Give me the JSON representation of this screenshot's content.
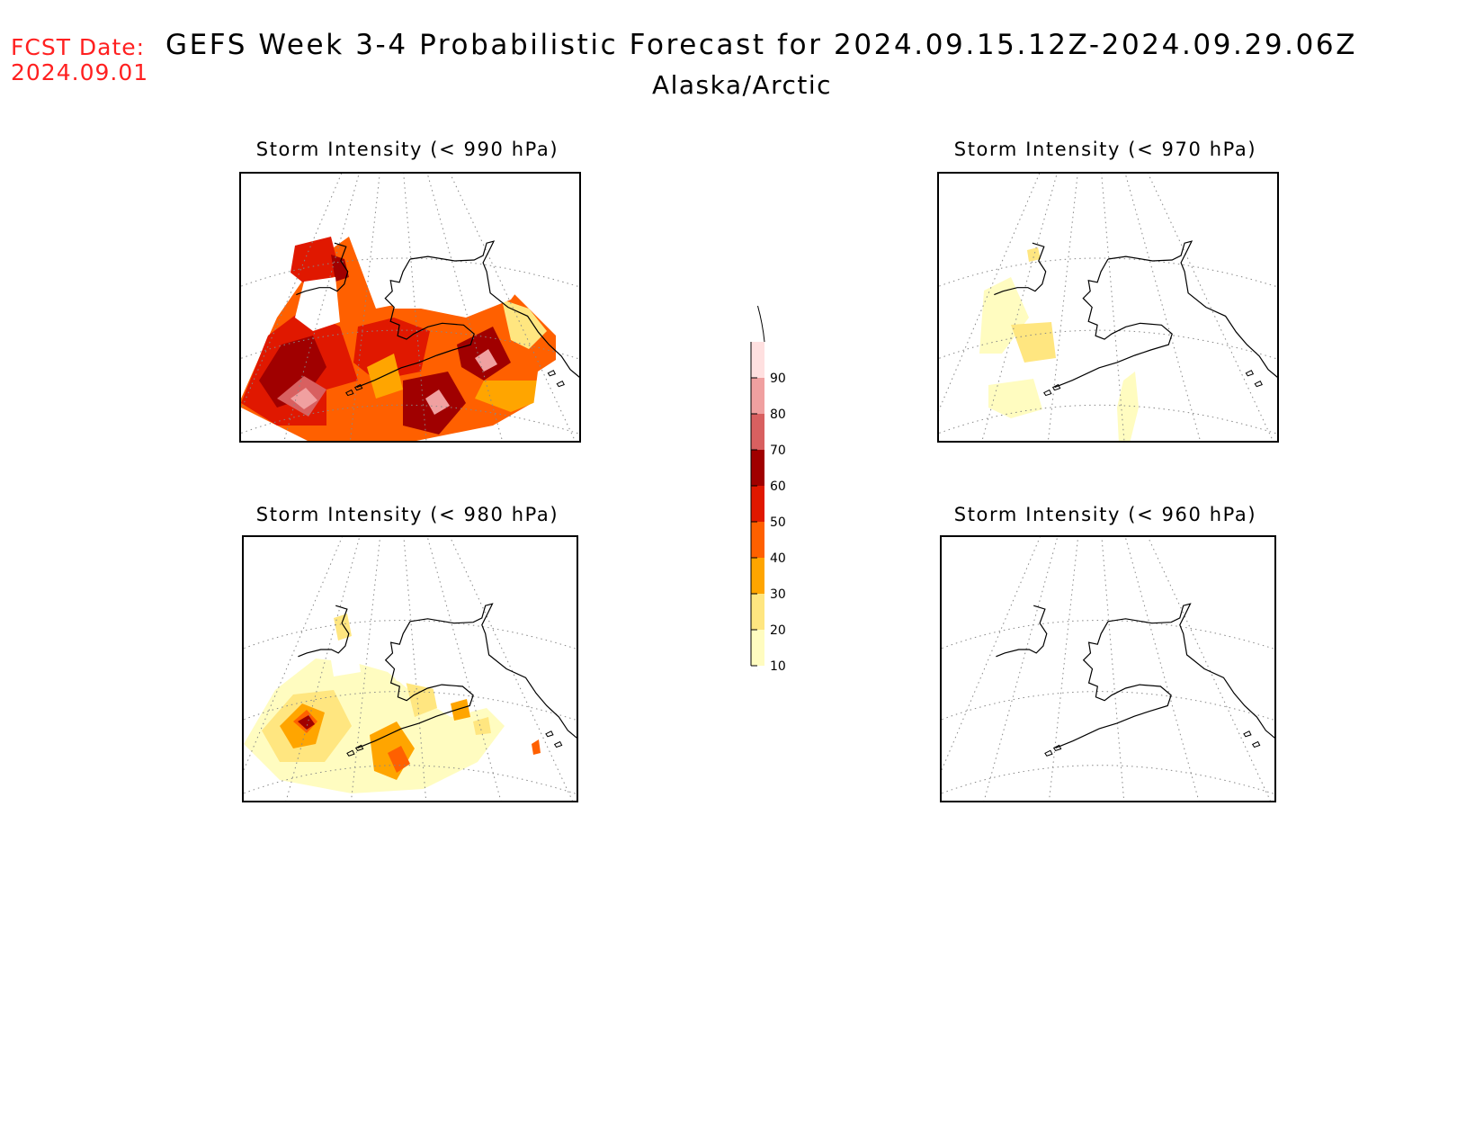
{
  "header": {
    "fcst_label": "FCST Date:",
    "fcst_date": "2024.09.01",
    "title": "GEFS Week 3-4 Probabilistic Forecast for 2024.09.15.12Z-2024.09.29.06Z",
    "subtitle": "Alaska/Arctic"
  },
  "panels": [
    {
      "id": "p990",
      "title": "Storm Intensity (< 990 hPa)",
      "threshold_hPa": 990,
      "coverage": "high"
    },
    {
      "id": "p970",
      "title": "Storm Intensity (< 970 hPa)",
      "threshold_hPa": 970,
      "coverage": "low"
    },
    {
      "id": "p980",
      "title": "Storm Intensity (< 980 hPa)",
      "threshold_hPa": 980,
      "coverage": "medium"
    },
    {
      "id": "p960",
      "title": "Storm Intensity (< 960 hPa)",
      "threshold_hPa": 960,
      "coverage": "none"
    }
  ],
  "colorbar": {
    "ticks": [
      "10",
      "20",
      "30",
      "40",
      "50",
      "60",
      "70",
      "80",
      "90"
    ],
    "colors": [
      "#fffcc0",
      "#ffe680",
      "#ffa500",
      "#ff6000",
      "#e01800",
      "#a00000",
      "#d86060",
      "#f0a0a0",
      "#ffe0e0"
    ]
  },
  "colors": {
    "fcst_text": "#ff2020",
    "coastline": "#000000",
    "graticule": "#888888"
  }
}
